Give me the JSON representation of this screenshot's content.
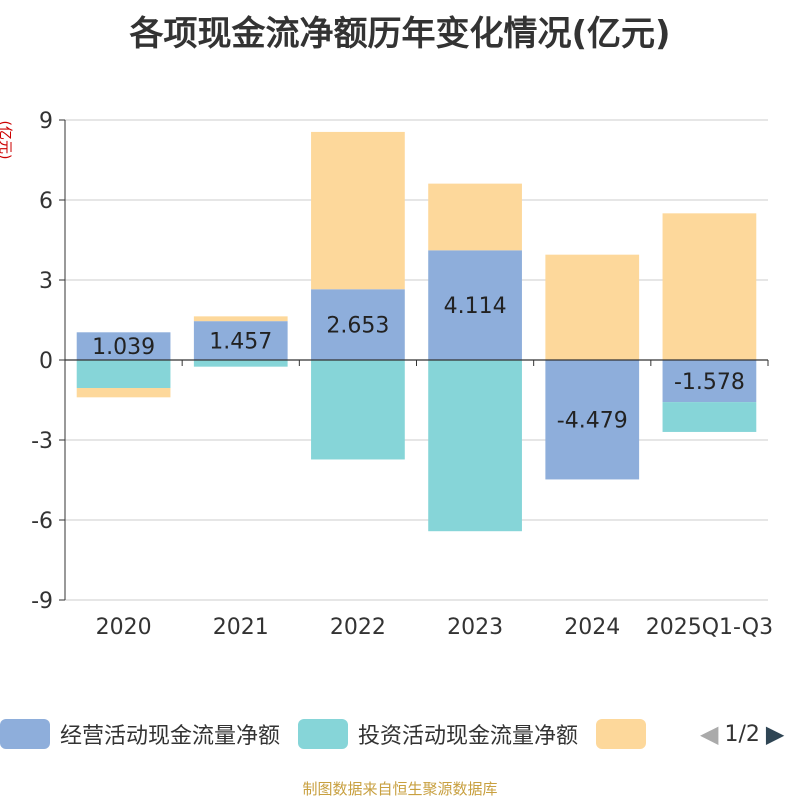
{
  "chart_data": {
    "type": "bar",
    "stacked": true,
    "title": "各项现金流净额历年变化情况(亿元)",
    "ylabel": "(亿元)",
    "ylim": [
      -9,
      9
    ],
    "yticks": [
      9,
      6,
      3,
      0,
      -3,
      -6,
      -9
    ],
    "categories": [
      "2020",
      "2021",
      "2022",
      "2023",
      "2024",
      "2025Q1-Q3"
    ],
    "series": [
      {
        "name": "经营活动现金流量净额",
        "color": "#8eaedb",
        "values": [
          1.039,
          1.457,
          2.653,
          4.114,
          -4.479,
          -1.578
        ],
        "labels": [
          "1.039",
          "1.457",
          "2.653",
          "4.114",
          "-4.479",
          "-1.578"
        ]
      },
      {
        "name": "投资活动现金流量净额",
        "color": "#86d5d8",
        "values": [
          -1.05,
          -0.25,
          -3.73,
          -6.42,
          0,
          -1.12
        ]
      },
      {
        "name": "",
        "color": "#fdd89b",
        "values": [
          -0.35,
          0.18,
          5.9,
          2.5,
          3.95,
          5.5
        ]
      }
    ]
  },
  "legend": {
    "items": [
      "经营活动现金流量净额",
      "投资活动现金流量净额",
      ""
    ],
    "pager": "1/2",
    "prev_icon": "◀",
    "next_icon": "▶"
  },
  "source": "制图数据来自恒生聚源数据库"
}
